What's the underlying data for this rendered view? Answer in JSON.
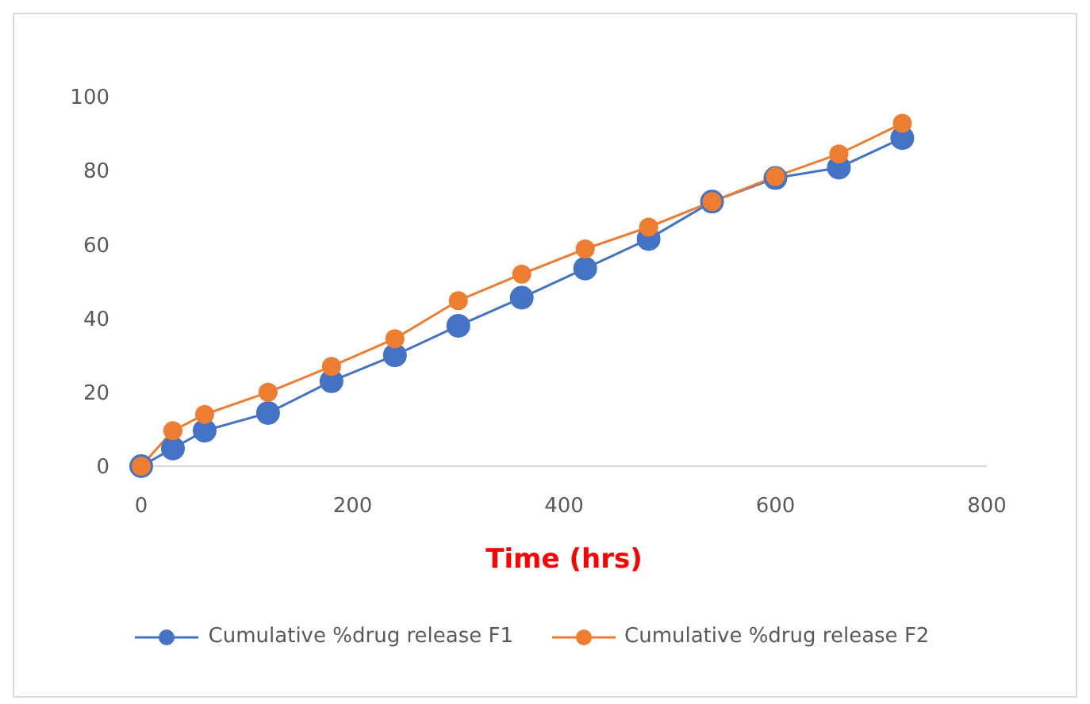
{
  "chart_data": {
    "type": "line",
    "xlabel": "Time (hrs)",
    "x": [
      0,
      30,
      60,
      120,
      180,
      240,
      300,
      360,
      420,
      480,
      540,
      600,
      660,
      720
    ],
    "series": [
      {
        "name": "Cumulative %drug release  F1",
        "color": "#4472c4",
        "values": [
          0,
          4.8,
          9.6,
          14.4,
          23,
          30,
          38,
          45.6,
          53.5,
          61.5,
          71.6,
          78,
          80.8,
          88.8
        ]
      },
      {
        "name": "Cumulative %drug release  F2",
        "color": "#ed7d31",
        "values": [
          0,
          9.6,
          14,
          20,
          27,
          34.5,
          44.8,
          52,
          58.8,
          64.7,
          71.6,
          78.4,
          84.5,
          92.8
        ]
      }
    ],
    "xlim": [
      0,
      800
    ],
    "xticks": [
      0,
      200,
      400,
      600,
      800
    ],
    "ylim": [
      0,
      100
    ],
    "yticks": [
      0,
      20,
      40,
      60,
      80,
      100
    ],
    "grid": false,
    "legend": "bottom",
    "marker": "circle",
    "line_style": "solid"
  }
}
